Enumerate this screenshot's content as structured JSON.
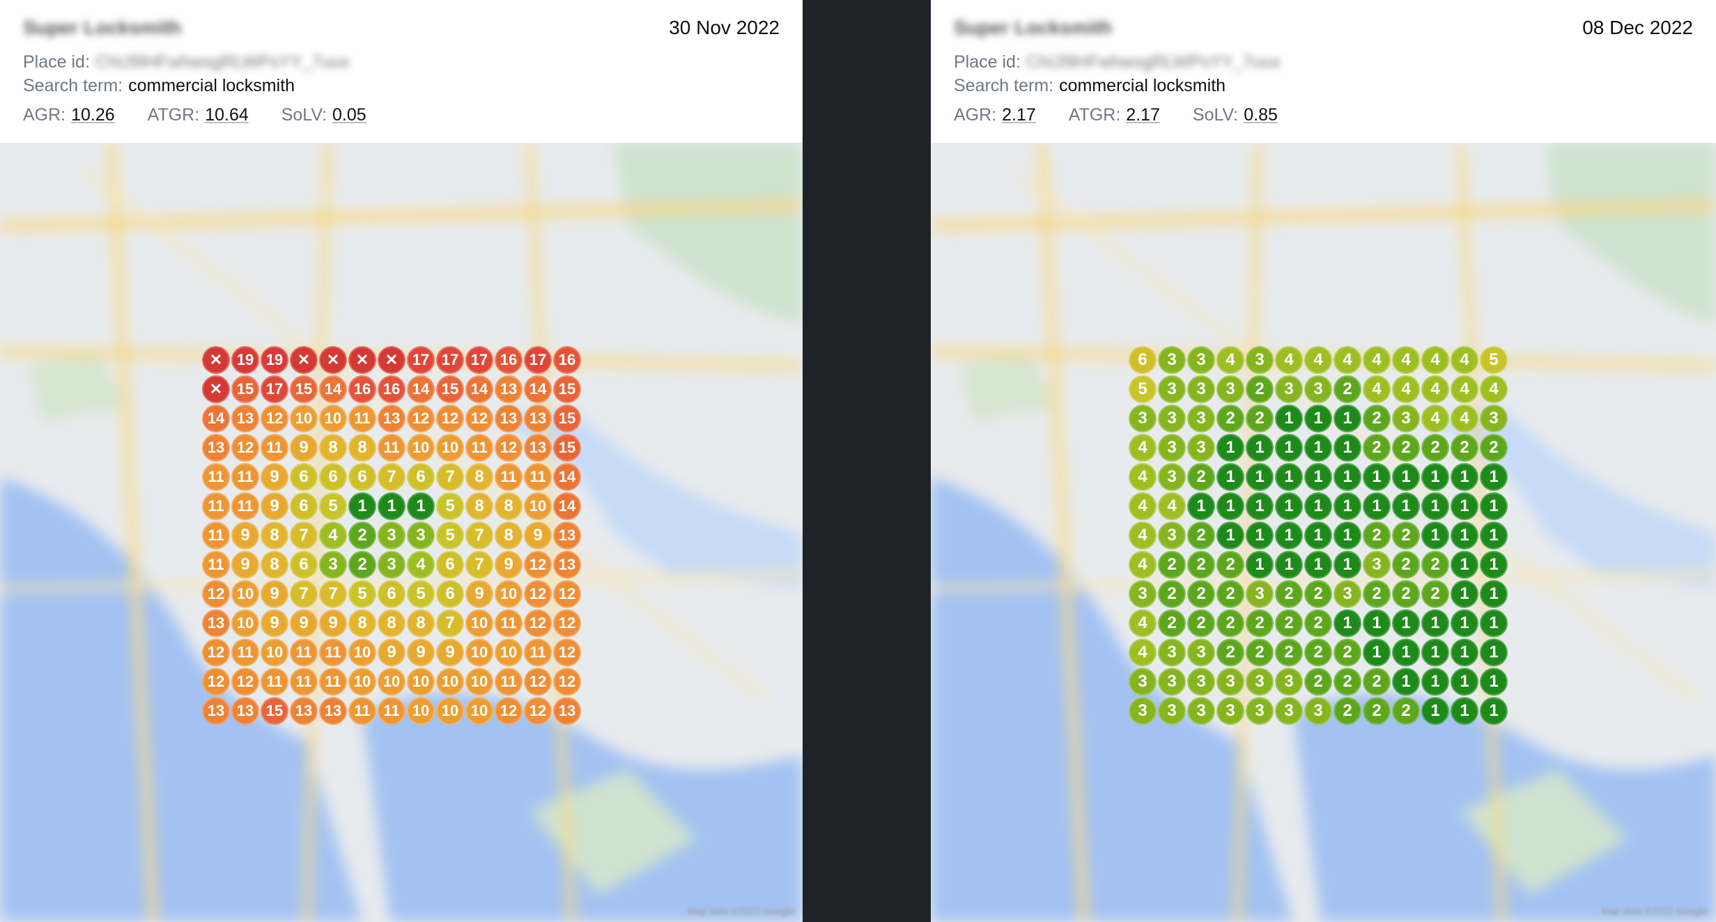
{
  "colors": {
    "rank_1": "#1e8a1a",
    "rank_2": "#5da71d",
    "rank_3": "#86b51f",
    "rank_4": "#9ebf22",
    "rank_5": "#c8c42a",
    "rank_6": "#cfc02b",
    "rank_7": "#d7bd2c",
    "rank_8": "#e2b430",
    "rank_9": "#e8a931",
    "rank_10": "#ec9e32",
    "rank_11": "#ee9633",
    "rank_12": "#ef8e34",
    "rank_13": "#ee8235",
    "rank_14": "#ec7436",
    "rank_15": "#e96537",
    "rank_16": "#e45438",
    "rank_17": "#e04738",
    "rank_19": "#d93a37",
    "not_found": "#d33a33"
  },
  "panels": [
    {
      "business_name": "Super Locksmith",
      "date": "30 Nov 2022",
      "place_id_label": "Place id:",
      "place_id_value": "ChIJ9lHFwhwsgRLWPsYY_7uux",
      "search_term_label": "Search term:",
      "search_term_value": "commercial locksmith",
      "metrics": [
        {
          "label": "AGR:",
          "value": "10.26"
        },
        {
          "label": "ATGR:",
          "value": "10.64"
        },
        {
          "label": "SoLV:",
          "value": "0.05"
        }
      ],
      "grid": [
        [
          "x",
          "19",
          "19",
          "x",
          "x",
          "x",
          "x",
          "17",
          "17",
          "17",
          "16",
          "17",
          "16"
        ],
        [
          "x",
          "15",
          "17",
          "15",
          "14",
          "16",
          "16",
          "14",
          "15",
          "14",
          "13",
          "14",
          "15"
        ],
        [
          "14",
          "13",
          "12",
          "10",
          "10",
          "11",
          "13",
          "12",
          "12",
          "12",
          "13",
          "13",
          "15"
        ],
        [
          "13",
          "12",
          "11",
          "9",
          "8",
          "8",
          "11",
          "10",
          "10",
          "11",
          "12",
          "13",
          "15"
        ],
        [
          "11",
          "11",
          "9",
          "6",
          "6",
          "6",
          "7",
          "6",
          "7",
          "8",
          "11",
          "11",
          "14"
        ],
        [
          "11",
          "11",
          "9",
          "6",
          "5",
          "1",
          "1",
          "1",
          "5",
          "8",
          "8",
          "10",
          "14"
        ],
        [
          "11",
          "9",
          "8",
          "7",
          "4",
          "2",
          "3",
          "3",
          "5",
          "7",
          "8",
          "9",
          "13"
        ],
        [
          "11",
          "9",
          "8",
          "6",
          "3",
          "2",
          "3",
          "4",
          "6",
          "7",
          "9",
          "12",
          "13"
        ],
        [
          "12",
          "10",
          "9",
          "7",
          "7",
          "5",
          "6",
          "5",
          "6",
          "9",
          "10",
          "12",
          "12"
        ],
        [
          "13",
          "10",
          "9",
          "9",
          "9",
          "8",
          "8",
          "8",
          "7",
          "10",
          "11",
          "12",
          "12"
        ],
        [
          "12",
          "11",
          "10",
          "11",
          "11",
          "10",
          "9",
          "9",
          "9",
          "10",
          "10",
          "11",
          "12"
        ],
        [
          "12",
          "12",
          "11",
          "11",
          "11",
          "10",
          "10",
          "10",
          "10",
          "10",
          "11",
          "12",
          "12"
        ],
        [
          "13",
          "13",
          "15",
          "13",
          "13",
          "11",
          "11",
          "10",
          "10",
          "10",
          "12",
          "12",
          "13"
        ]
      ]
    },
    {
      "business_name": "Super Locksmith",
      "date": "08 Dec 2022",
      "place_id_label": "Place id:",
      "place_id_value": "ChIJ9lHFwhwsgRLWPsYY_7uux",
      "search_term_label": "Search term:",
      "search_term_value": "commercial locksmith",
      "metrics": [
        {
          "label": "AGR:",
          "value": "2.17"
        },
        {
          "label": "ATGR:",
          "value": "2.17"
        },
        {
          "label": "SoLV:",
          "value": "0.85"
        }
      ],
      "grid": [
        [
          "6",
          "3",
          "3",
          "4",
          "3",
          "4",
          "4",
          "4",
          "4",
          "4",
          "4",
          "4",
          "5"
        ],
        [
          "5",
          "3",
          "3",
          "3",
          "2",
          "3",
          "3",
          "2",
          "4",
          "4",
          "4",
          "4",
          "4"
        ],
        [
          "3",
          "3",
          "3",
          "2",
          "2",
          "1",
          "1",
          "1",
          "2",
          "3",
          "4",
          "4",
          "3"
        ],
        [
          "4",
          "3",
          "3",
          "1",
          "1",
          "1",
          "1",
          "1",
          "2",
          "2",
          "2",
          "2",
          "2"
        ],
        [
          "4",
          "3",
          "2",
          "1",
          "1",
          "1",
          "1",
          "1",
          "1",
          "1",
          "1",
          "1",
          "1"
        ],
        [
          "4",
          "4",
          "1",
          "1",
          "1",
          "1",
          "1",
          "1",
          "1",
          "1",
          "1",
          "1",
          "1"
        ],
        [
          "4",
          "3",
          "2",
          "1",
          "1",
          "1",
          "1",
          "1",
          "2",
          "2",
          "1",
          "1",
          "1"
        ],
        [
          "4",
          "2",
          "2",
          "2",
          "1",
          "1",
          "1",
          "1",
          "3",
          "2",
          "2",
          "1",
          "1"
        ],
        [
          "3",
          "2",
          "2",
          "2",
          "3",
          "2",
          "2",
          "3",
          "2",
          "2",
          "2",
          "1",
          "1"
        ],
        [
          "4",
          "2",
          "2",
          "2",
          "2",
          "2",
          "2",
          "1",
          "1",
          "1",
          "1",
          "1",
          "1"
        ],
        [
          "4",
          "3",
          "3",
          "2",
          "2",
          "2",
          "2",
          "2",
          "1",
          "1",
          "1",
          "1",
          "1"
        ],
        [
          "3",
          "3",
          "3",
          "3",
          "3",
          "3",
          "2",
          "2",
          "2",
          "1",
          "1",
          "1",
          "1"
        ],
        [
          "3",
          "3",
          "3",
          "3",
          "3",
          "3",
          "3",
          "2",
          "2",
          "2",
          "1",
          "1",
          "1"
        ]
      ]
    }
  ],
  "map": {
    "copyright": "Map data ©2022 Google"
  }
}
